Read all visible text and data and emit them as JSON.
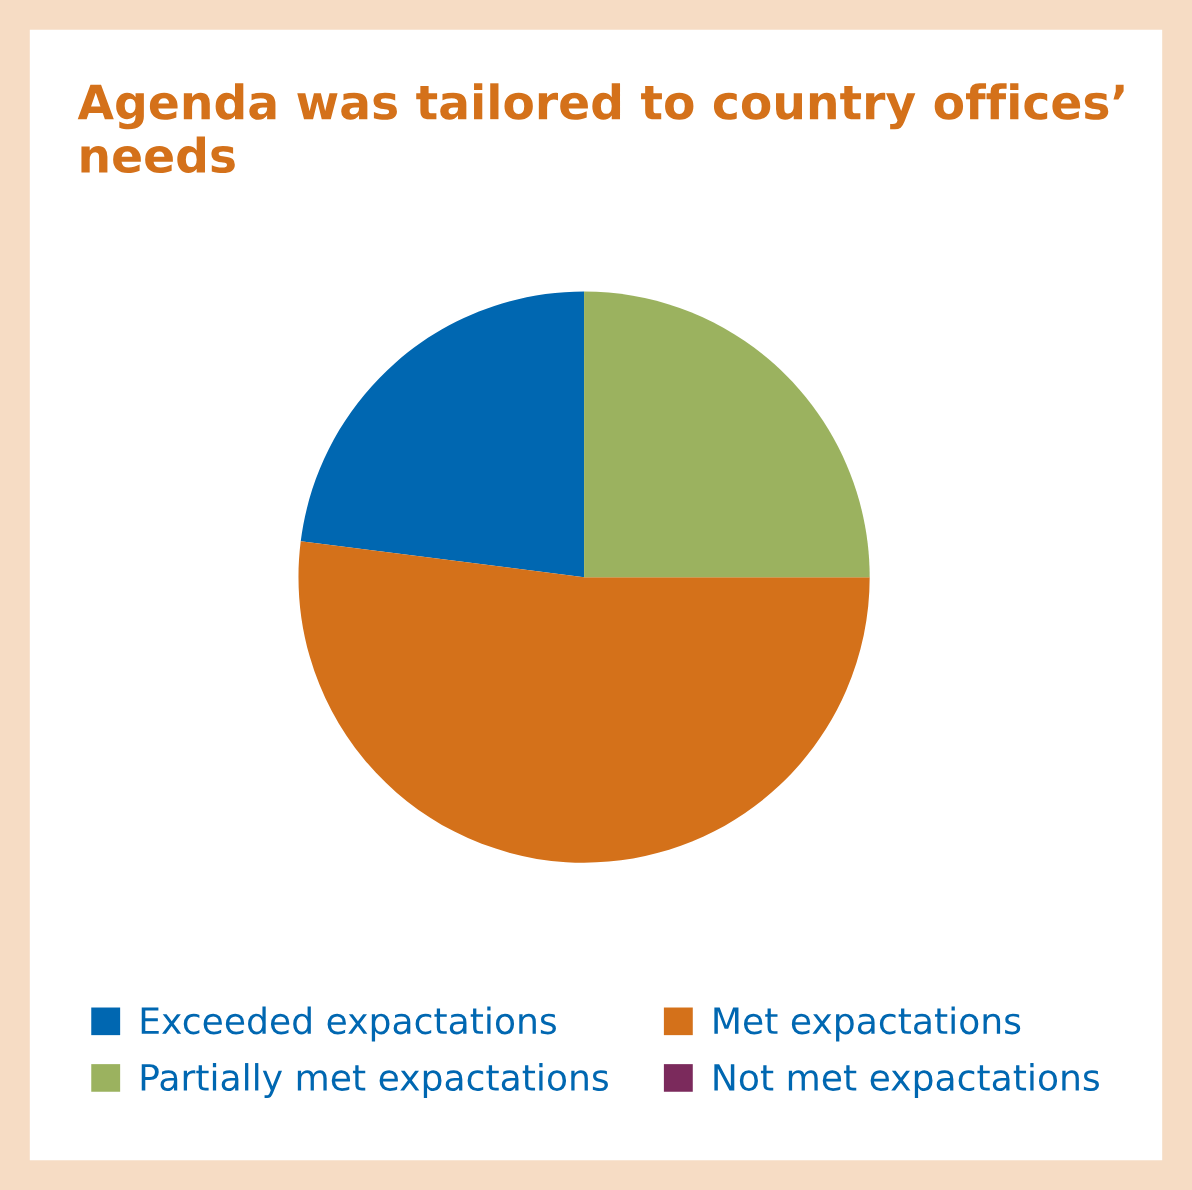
{
  "chart_data": {
    "type": "pie",
    "title": "Agenda was tailored to country offices’ needs",
    "categories": [
      "Exceeded expactations",
      "Met expactations",
      "Partially met expactations",
      "Not met expactations"
    ],
    "values": [
      23,
      52,
      25,
      0
    ],
    "colors": [
      "#0067b1",
      "#d4711a",
      "#9bb25f",
      "#7b2a5c"
    ],
    "legend": "bottom"
  }
}
